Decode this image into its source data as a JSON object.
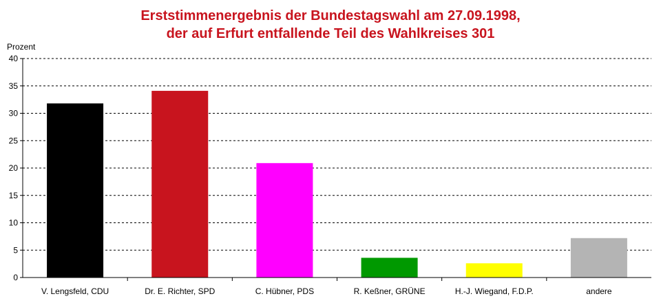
{
  "title_line1": "Erststimmenergebnis der Bundestagswahl am 27.09.1998,",
  "title_line2": "der auf Erfurt entfallende Teil des Wahlkreises 301",
  "chart_data": {
    "type": "bar",
    "title": "Erststimmenergebnis der Bundestagswahl am 27.09.1998, der auf Erfurt entfallende Teil des Wahlkreises 301",
    "ylabel": "Prozent",
    "xlabel": "",
    "ylim": [
      0,
      40
    ],
    "yticks": [
      0,
      5,
      10,
      15,
      20,
      25,
      30,
      35,
      40
    ],
    "grid": "horizontal-dashed",
    "categories": [
      "V. Lengsfeld, CDU",
      "Dr. E. Richter, SPD",
      "C. Hübner, PDS",
      "R. Keßner, GRÜNE",
      "H.-J. Wiegand, F.D.P.",
      "andere"
    ],
    "values": [
      31.8,
      34.1,
      20.9,
      3.6,
      2.6,
      7.2
    ],
    "colors": [
      "#000000",
      "#c8141e",
      "#ff00ff",
      "#009900",
      "#ffff00",
      "#b4b4b4"
    ]
  }
}
